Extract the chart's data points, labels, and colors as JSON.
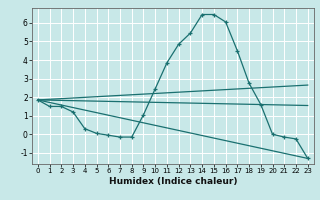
{
  "xlabel": "Humidex (Indice chaleur)",
  "bg_color": "#c8e8e8",
  "line_color": "#1a7070",
  "grid_color": "#b0d4d4",
  "xlim": [
    -0.5,
    23.5
  ],
  "ylim": [
    -1.6,
    6.8
  ],
  "yticks": [
    -1,
    0,
    1,
    2,
    3,
    4,
    5,
    6
  ],
  "xticks": [
    0,
    1,
    2,
    3,
    4,
    5,
    6,
    7,
    8,
    9,
    10,
    11,
    12,
    13,
    14,
    15,
    16,
    17,
    18,
    19,
    20,
    21,
    22,
    23
  ],
  "curve1_x": [
    0,
    1,
    2,
    3,
    4,
    5,
    6,
    7,
    8,
    9,
    10,
    11,
    12,
    13,
    14,
    15,
    16,
    17,
    18,
    19,
    20,
    21,
    22,
    23
  ],
  "curve1_y": [
    1.85,
    1.5,
    1.5,
    1.2,
    0.3,
    0.05,
    -0.05,
    -0.15,
    -0.15,
    1.05,
    2.45,
    3.85,
    4.85,
    5.45,
    6.45,
    6.45,
    6.05,
    4.5,
    2.75,
    1.6,
    0.0,
    -0.15,
    -0.25,
    -1.3
  ],
  "line1_x": [
    0,
    23
  ],
  "line1_y": [
    1.85,
    1.55
  ],
  "line2_x": [
    0,
    23
  ],
  "line2_y": [
    1.85,
    2.65
  ],
  "line3_x": [
    0,
    23
  ],
  "line3_y": [
    1.85,
    -1.3
  ]
}
